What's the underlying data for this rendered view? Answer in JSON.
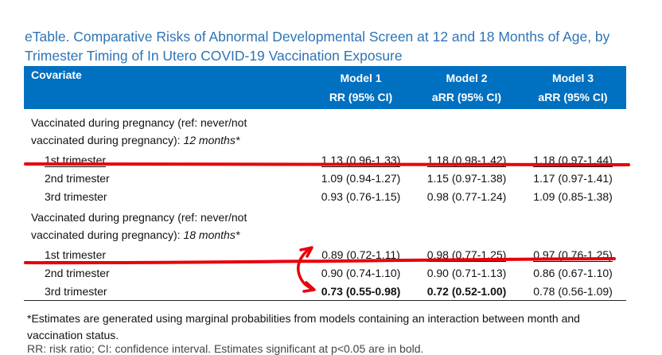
{
  "title_line1": "eTable. Comparative Risks of Abnormal Developmental Screen at 12 and 18 Months of Age, by",
  "title_line2": "Trimester Timing of In Utero COVID-19 Vaccination Exposure",
  "header": {
    "covariate": "Covariate",
    "models": [
      {
        "name": "Model 1",
        "metric": "RR (95% CI)"
      },
      {
        "name": "Model 2",
        "metric": "aRR (95% CI)"
      },
      {
        "name": "Model 3",
        "metric": "aRR (95% CI)"
      }
    ]
  },
  "groups": [
    {
      "label_line1": "Vaccinated during pregnancy (ref: never/not",
      "label_line2": "vaccinated during pregnancy): ",
      "label_italic": "12 months*",
      "rows": [
        {
          "trimester": "1st trimester",
          "values": [
            "1.13 (0.96-1.33)",
            "1.18 (0.98-1.42)",
            "1.18 (0.97-1.44)"
          ]
        },
        {
          "trimester": "2nd trimester",
          "values": [
            "1.09 (0.94-1.27)",
            "1.15 (0.97-1.38)",
            "1.17 (0.97-1.41)"
          ]
        },
        {
          "trimester": "3rd trimester",
          "values": [
            "0.93 (0.76-1.15)",
            "0.98 (0.77-1.24)",
            "1.09 (0.85-1.38)"
          ]
        }
      ]
    },
    {
      "label_line1": "Vaccinated during pregnancy (ref: never/not",
      "label_line2": "vaccinated during pregnancy): ",
      "label_italic": "18 months*",
      "rows": [
        {
          "trimester": "1st trimester",
          "values": [
            "0.89 (0.72-1.11)",
            "0.98 (0.77-1.25)",
            "0.97 (0.76-1.25)"
          ]
        },
        {
          "trimester": "2nd trimester",
          "values": [
            "0.90 (0.74-1.10)",
            "0.90 (0.71-1.13)",
            "0.86 (0.67-1.10)"
          ]
        },
        {
          "trimester": "3rd trimester",
          "values": [
            "0.73 (0.55-0.98)",
            "0.72 (0.52-1.00)",
            "0.78 (0.56-1.09)"
          ]
        }
      ]
    }
  ],
  "footnote_line1": "*Estimates are generated using marginal probabilities from models containing an interaction between month and",
  "footnote_line2": "vaccination status.",
  "footnote_cut": "RR: risk ratio; CI: confidence interval. Estimates significant at p<0.05 are in bold.",
  "annotation_color": "#e8000b"
}
